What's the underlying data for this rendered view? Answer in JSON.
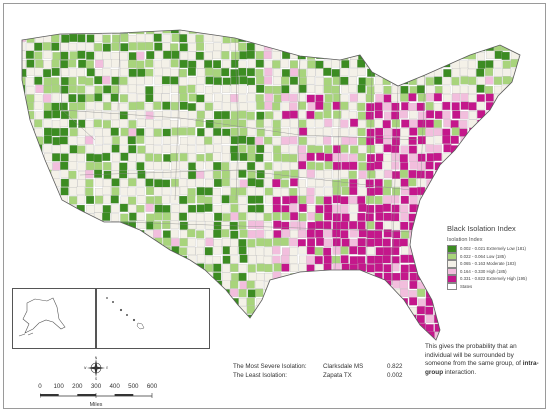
{
  "colors": {
    "extremely_low": "#3c8c22",
    "low": "#a8d47c",
    "moderate": "#f4f1e8",
    "high": "#f2bedd",
    "extremely_high": "#c4178b",
    "states": "#ffffff",
    "outline": "#7a7a7a"
  },
  "legend": {
    "title": "Black Isolation Index",
    "subtitle": "Isolation Index",
    "items": [
      {
        "label": "0.002 - 0.021 Extremely Low (181)",
        "color": "#3c8c22"
      },
      {
        "label": "0.022 - 0.064 Low (185)",
        "color": "#a8d47c"
      },
      {
        "label": "0.065 - 0.163 Moderate (183)",
        "color": "#f4f1e8"
      },
      {
        "label": "0.164 - 0.330 High (185)",
        "color": "#f2bedd"
      },
      {
        "label": "0.331 - 0.822 Extremely High (195)",
        "color": "#c4178b"
      },
      {
        "label": "States",
        "color": "#ffffff"
      }
    ]
  },
  "stats": {
    "most": {
      "label": "The Most Severe Isolation:",
      "place": "Clarksdale MS",
      "value": "0.822"
    },
    "least": {
      "label": "The Least Isolation:",
      "place": "Zapata TX",
      "value": "0.002"
    }
  },
  "note": {
    "part1": "This gives the probability that an individual will be surrounded by someone from the same group, of ",
    "bold": "intra-group",
    "part2": " interaction."
  },
  "scale": {
    "ticks": [
      "0",
      "100",
      "200",
      "300",
      "400",
      "500",
      "600"
    ],
    "units": "Miles"
  },
  "compass": {
    "n": "N",
    "s": "S",
    "e": "E",
    "w": "W"
  }
}
